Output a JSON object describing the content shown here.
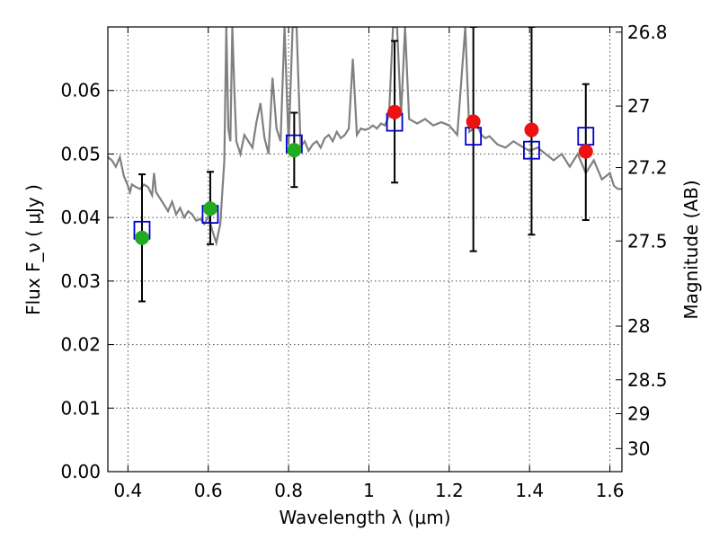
{
  "chart_data": {
    "type": "scatter",
    "xlabel": "Wavelength  λ (μm)",
    "ylabel": "Flux  F_ν  ( μJy )",
    "ylabel_right": "Magnitude (AB)",
    "xlim": [
      0.35,
      1.63
    ],
    "ylim": [
      0.0,
      0.07
    ],
    "grid": true,
    "x_ticks": [
      0.4,
      0.6,
      0.8,
      1.0,
      1.2,
      1.4,
      1.6
    ],
    "x_tick_labels": [
      "0.4",
      "0.6",
      "0.8",
      "1",
      "1.2",
      "1.4",
      "1.6"
    ],
    "y_ticks": [
      0.0,
      0.01,
      0.02,
      0.03,
      0.04,
      0.05,
      0.06
    ],
    "y_tick_labels": [
      "0.00",
      "0.01",
      "0.02",
      "0.03",
      "0.04",
      "0.05",
      "0.06"
    ],
    "right_axis_ticks": [
      {
        "mag": 26.8,
        "label": "26.8"
      },
      {
        "mag": 27.0,
        "label": "27"
      },
      {
        "mag": 27.2,
        "label": "27.2"
      },
      {
        "mag": 27.5,
        "label": "27.5"
      },
      {
        "mag": 28.0,
        "label": "28"
      },
      {
        "mag": 28.5,
        "label": "28.5"
      },
      {
        "mag": 29.0,
        "label": "29"
      },
      {
        "mag": 30.0,
        "label": "30"
      }
    ],
    "colors": {
      "model": "#808080",
      "model_fluxes": "#0000cc",
      "detected": "#22aa22",
      "upper": "#ee1111",
      "errorbar": "#000000"
    },
    "model_spectrum": {
      "x": [
        0.35,
        0.36,
        0.37,
        0.38,
        0.39,
        0.4,
        0.405,
        0.41,
        0.42,
        0.43,
        0.44,
        0.45,
        0.46,
        0.465,
        0.47,
        0.48,
        0.49,
        0.5,
        0.51,
        0.52,
        0.53,
        0.54,
        0.55,
        0.56,
        0.57,
        0.58,
        0.59,
        0.6,
        0.61,
        0.615,
        0.62,
        0.63,
        0.64,
        0.645,
        0.65,
        0.655,
        0.66,
        0.665,
        0.67,
        0.68,
        0.69,
        0.7,
        0.71,
        0.72,
        0.73,
        0.74,
        0.75,
        0.76,
        0.77,
        0.78,
        0.79,
        0.8,
        0.81,
        0.82,
        0.83,
        0.84,
        0.85,
        0.86,
        0.87,
        0.88,
        0.89,
        0.9,
        0.91,
        0.92,
        0.93,
        0.94,
        0.95,
        0.96,
        0.97,
        0.98,
        0.99,
        1.0,
        1.01,
        1.02,
        1.03,
        1.04,
        1.05,
        1.06,
        1.07,
        1.08,
        1.09,
        1.1,
        1.12,
        1.14,
        1.16,
        1.18,
        1.2,
        1.22,
        1.24,
        1.25,
        1.26,
        1.27,
        1.28,
        1.29,
        1.3,
        1.32,
        1.34,
        1.36,
        1.38,
        1.4,
        1.42,
        1.44,
        1.46,
        1.48,
        1.5,
        1.52,
        1.54,
        1.56,
        1.58,
        1.6,
        1.61,
        1.62,
        1.63
      ],
      "y": [
        0.0495,
        0.049,
        0.048,
        0.0495,
        0.0465,
        0.045,
        0.044,
        0.0452,
        0.0448,
        0.0445,
        0.0452,
        0.0448,
        0.0435,
        0.047,
        0.044,
        0.043,
        0.042,
        0.041,
        0.0425,
        0.0405,
        0.0415,
        0.04,
        0.041,
        0.0405,
        0.0395,
        0.0398,
        0.039,
        0.0402,
        0.038,
        0.037,
        0.036,
        0.039,
        0.049,
        0.07,
        0.054,
        0.052,
        0.07,
        0.06,
        0.052,
        0.05,
        0.053,
        0.052,
        0.051,
        0.055,
        0.058,
        0.0525,
        0.05,
        0.062,
        0.054,
        0.052,
        0.07,
        0.0515,
        0.07,
        0.07,
        0.0512,
        0.052,
        0.0505,
        0.0515,
        0.052,
        0.051,
        0.0525,
        0.053,
        0.052,
        0.0535,
        0.0525,
        0.053,
        0.054,
        0.065,
        0.053,
        0.054,
        0.0538,
        0.054,
        0.0545,
        0.054,
        0.0548,
        0.0545,
        0.056,
        0.07,
        0.07,
        0.056,
        0.07,
        0.0555,
        0.0548,
        0.0555,
        0.0545,
        0.055,
        0.0545,
        0.053,
        0.07,
        0.0535,
        0.054,
        0.0545,
        0.053,
        0.0525,
        0.0528,
        0.0515,
        0.051,
        0.052,
        0.0512,
        0.0505,
        0.051,
        0.05,
        0.049,
        0.05,
        0.048,
        0.05,
        0.047,
        0.049,
        0.046,
        0.047,
        0.045,
        0.0445,
        0.0445
      ]
    },
    "model_fluxes": {
      "x": [
        0.435,
        0.605,
        0.814,
        1.064,
        1.26,
        1.405,
        1.54
      ],
      "y": [
        0.038,
        0.0405,
        0.0516,
        0.055,
        0.0528,
        0.0506,
        0.0528
      ]
    },
    "detected_points": {
      "x": [
        0.435,
        0.605,
        0.814
      ],
      "y": [
        0.0368,
        0.0414,
        0.0506
      ],
      "yerr_low": [
        0.0268,
        0.0358,
        0.0448
      ],
      "yerr_high": [
        0.0468,
        0.0472,
        0.0565
      ]
    },
    "upper_points": {
      "x": [
        1.064,
        1.26,
        1.405,
        1.54
      ],
      "y": [
        0.0566,
        0.0551,
        0.0538,
        0.0504
      ],
      "yerr_low": [
        0.0455,
        0.0347,
        0.0373,
        0.0396
      ],
      "yerr_high": [
        0.0678,
        0.07,
        0.07,
        0.061
      ]
    }
  }
}
